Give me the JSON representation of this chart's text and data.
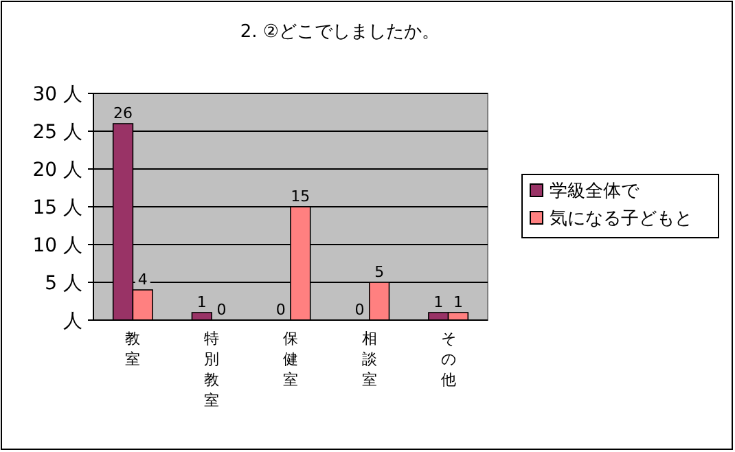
{
  "chart_data": {
    "type": "bar",
    "title": "2. ②どこでしましたか。",
    "categories": [
      "教室",
      "特別教室",
      "保健室",
      "相談室",
      "その他"
    ],
    "series": [
      {
        "name": "学級全体で",
        "color": "#993366",
        "values": [
          26,
          1,
          0,
          0,
          1
        ]
      },
      {
        "name": "気になる子どもと",
        "color": "#ff8080",
        "values": [
          4,
          0,
          15,
          5,
          1
        ]
      }
    ],
    "ylim": [
      0,
      30
    ],
    "yticks": [
      {
        "value": 0,
        "label": "人"
      },
      {
        "value": 5,
        "label": "5 人"
      },
      {
        "value": 10,
        "label": "10 人"
      },
      {
        "value": 15,
        "label": "15 人"
      },
      {
        "value": 20,
        "label": "20 人"
      },
      {
        "value": 25,
        "label": "25 人"
      },
      {
        "value": 30,
        "label": "30 人"
      }
    ],
    "grid": "y",
    "legend": "right",
    "data_labels": true
  }
}
